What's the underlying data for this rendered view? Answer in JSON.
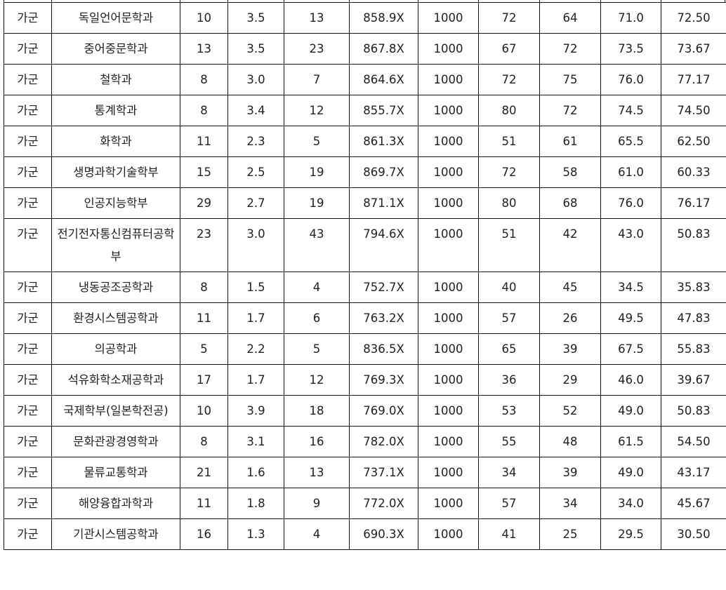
{
  "table": {
    "rows": [
      [
        "가군",
        "독일언어문학과",
        "10",
        "3.5",
        "13",
        "858.9X",
        "1000",
        "72",
        "64",
        "71.0",
        "72.50"
      ],
      [
        "가군",
        "중어중문학과",
        "13",
        "3.5",
        "23",
        "867.8X",
        "1000",
        "67",
        "72",
        "73.5",
        "73.67"
      ],
      [
        "가군",
        "철학과",
        "8",
        "3.0",
        "7",
        "864.6X",
        "1000",
        "72",
        "75",
        "76.0",
        "77.17"
      ],
      [
        "가군",
        "통계학과",
        "8",
        "3.4",
        "12",
        "855.7X",
        "1000",
        "80",
        "72",
        "74.5",
        "74.50"
      ],
      [
        "가군",
        "화학과",
        "11",
        "2.3",
        "5",
        "861.3X",
        "1000",
        "51",
        "61",
        "65.5",
        "62.50"
      ],
      [
        "가군",
        "생명과학기술학부",
        "15",
        "2.5",
        "19",
        "869.7X",
        "1000",
        "72",
        "58",
        "61.0",
        "60.33"
      ],
      [
        "가군",
        "인공지능학부",
        "29",
        "2.7",
        "19",
        "871.1X",
        "1000",
        "80",
        "68",
        "76.0",
        "76.17"
      ],
      [
        "가군",
        "전기전자통신컴퓨터공학부",
        "23",
        "3.0",
        "43",
        "794.6X",
        "1000",
        "51",
        "42",
        "43.0",
        "50.83"
      ],
      [
        "가군",
        "냉동공조공학과",
        "8",
        "1.5",
        "4",
        "752.7X",
        "1000",
        "40",
        "45",
        "34.5",
        "35.83"
      ],
      [
        "가군",
        "환경시스템공학과",
        "11",
        "1.7",
        "6",
        "763.2X",
        "1000",
        "57",
        "26",
        "49.5",
        "47.83"
      ],
      [
        "가군",
        "의공학과",
        "5",
        "2.2",
        "5",
        "836.5X",
        "1000",
        "65",
        "39",
        "67.5",
        "55.83"
      ],
      [
        "가군",
        "석유화학소재공학과",
        "17",
        "1.7",
        "12",
        "769.3X",
        "1000",
        "36",
        "29",
        "46.0",
        "39.67"
      ],
      [
        "가군",
        "국제학부(일본학전공)",
        "10",
        "3.9",
        "18",
        "769.0X",
        "1000",
        "53",
        "52",
        "49.0",
        "50.83"
      ],
      [
        "가군",
        "문화관광경영학과",
        "8",
        "3.1",
        "16",
        "782.0X",
        "1000",
        "55",
        "48",
        "61.5",
        "54.50"
      ],
      [
        "가군",
        "물류교통학과",
        "21",
        "1.6",
        "13",
        "737.1X",
        "1000",
        "34",
        "39",
        "49.0",
        "43.17"
      ],
      [
        "가군",
        "해양융합과학과",
        "11",
        "1.8",
        "9",
        "772.0X",
        "1000",
        "57",
        "34",
        "34.0",
        "45.67"
      ],
      [
        "가군",
        "기관시스템공학과",
        "16",
        "1.3",
        "4",
        "690.3X",
        "1000",
        "41",
        "25",
        "29.5",
        "30.50"
      ]
    ]
  }
}
